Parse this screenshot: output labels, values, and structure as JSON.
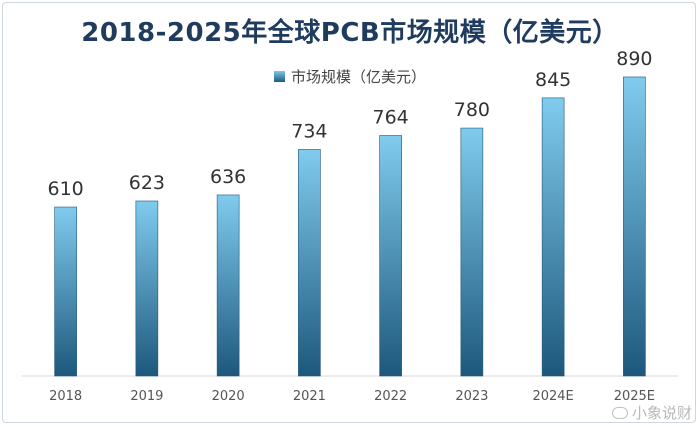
{
  "chart_data": {
    "type": "bar",
    "title": "2018-2025年全球PCB市场规模（亿美元）",
    "legend_position": "top-center",
    "grid": false,
    "categories": [
      "2018",
      "2019",
      "2020",
      "2021",
      "2022",
      "2023",
      "2024E",
      "2025E"
    ],
    "series": [
      {
        "name": "市场规模（亿美元）",
        "values": [
          610,
          623,
          636,
          734,
          764,
          780,
          845,
          890
        ]
      }
    ],
    "data_labels": [
      "610",
      "623",
      "636",
      "734",
      "764",
      "780",
      "845",
      "890"
    ],
    "ylim": [
      0,
      1000
    ],
    "colors": {
      "bar_top": "#80cbee",
      "bar_bottom": "#1d587c",
      "title": "#1f3b5e"
    }
  },
  "watermark": "小象说财"
}
